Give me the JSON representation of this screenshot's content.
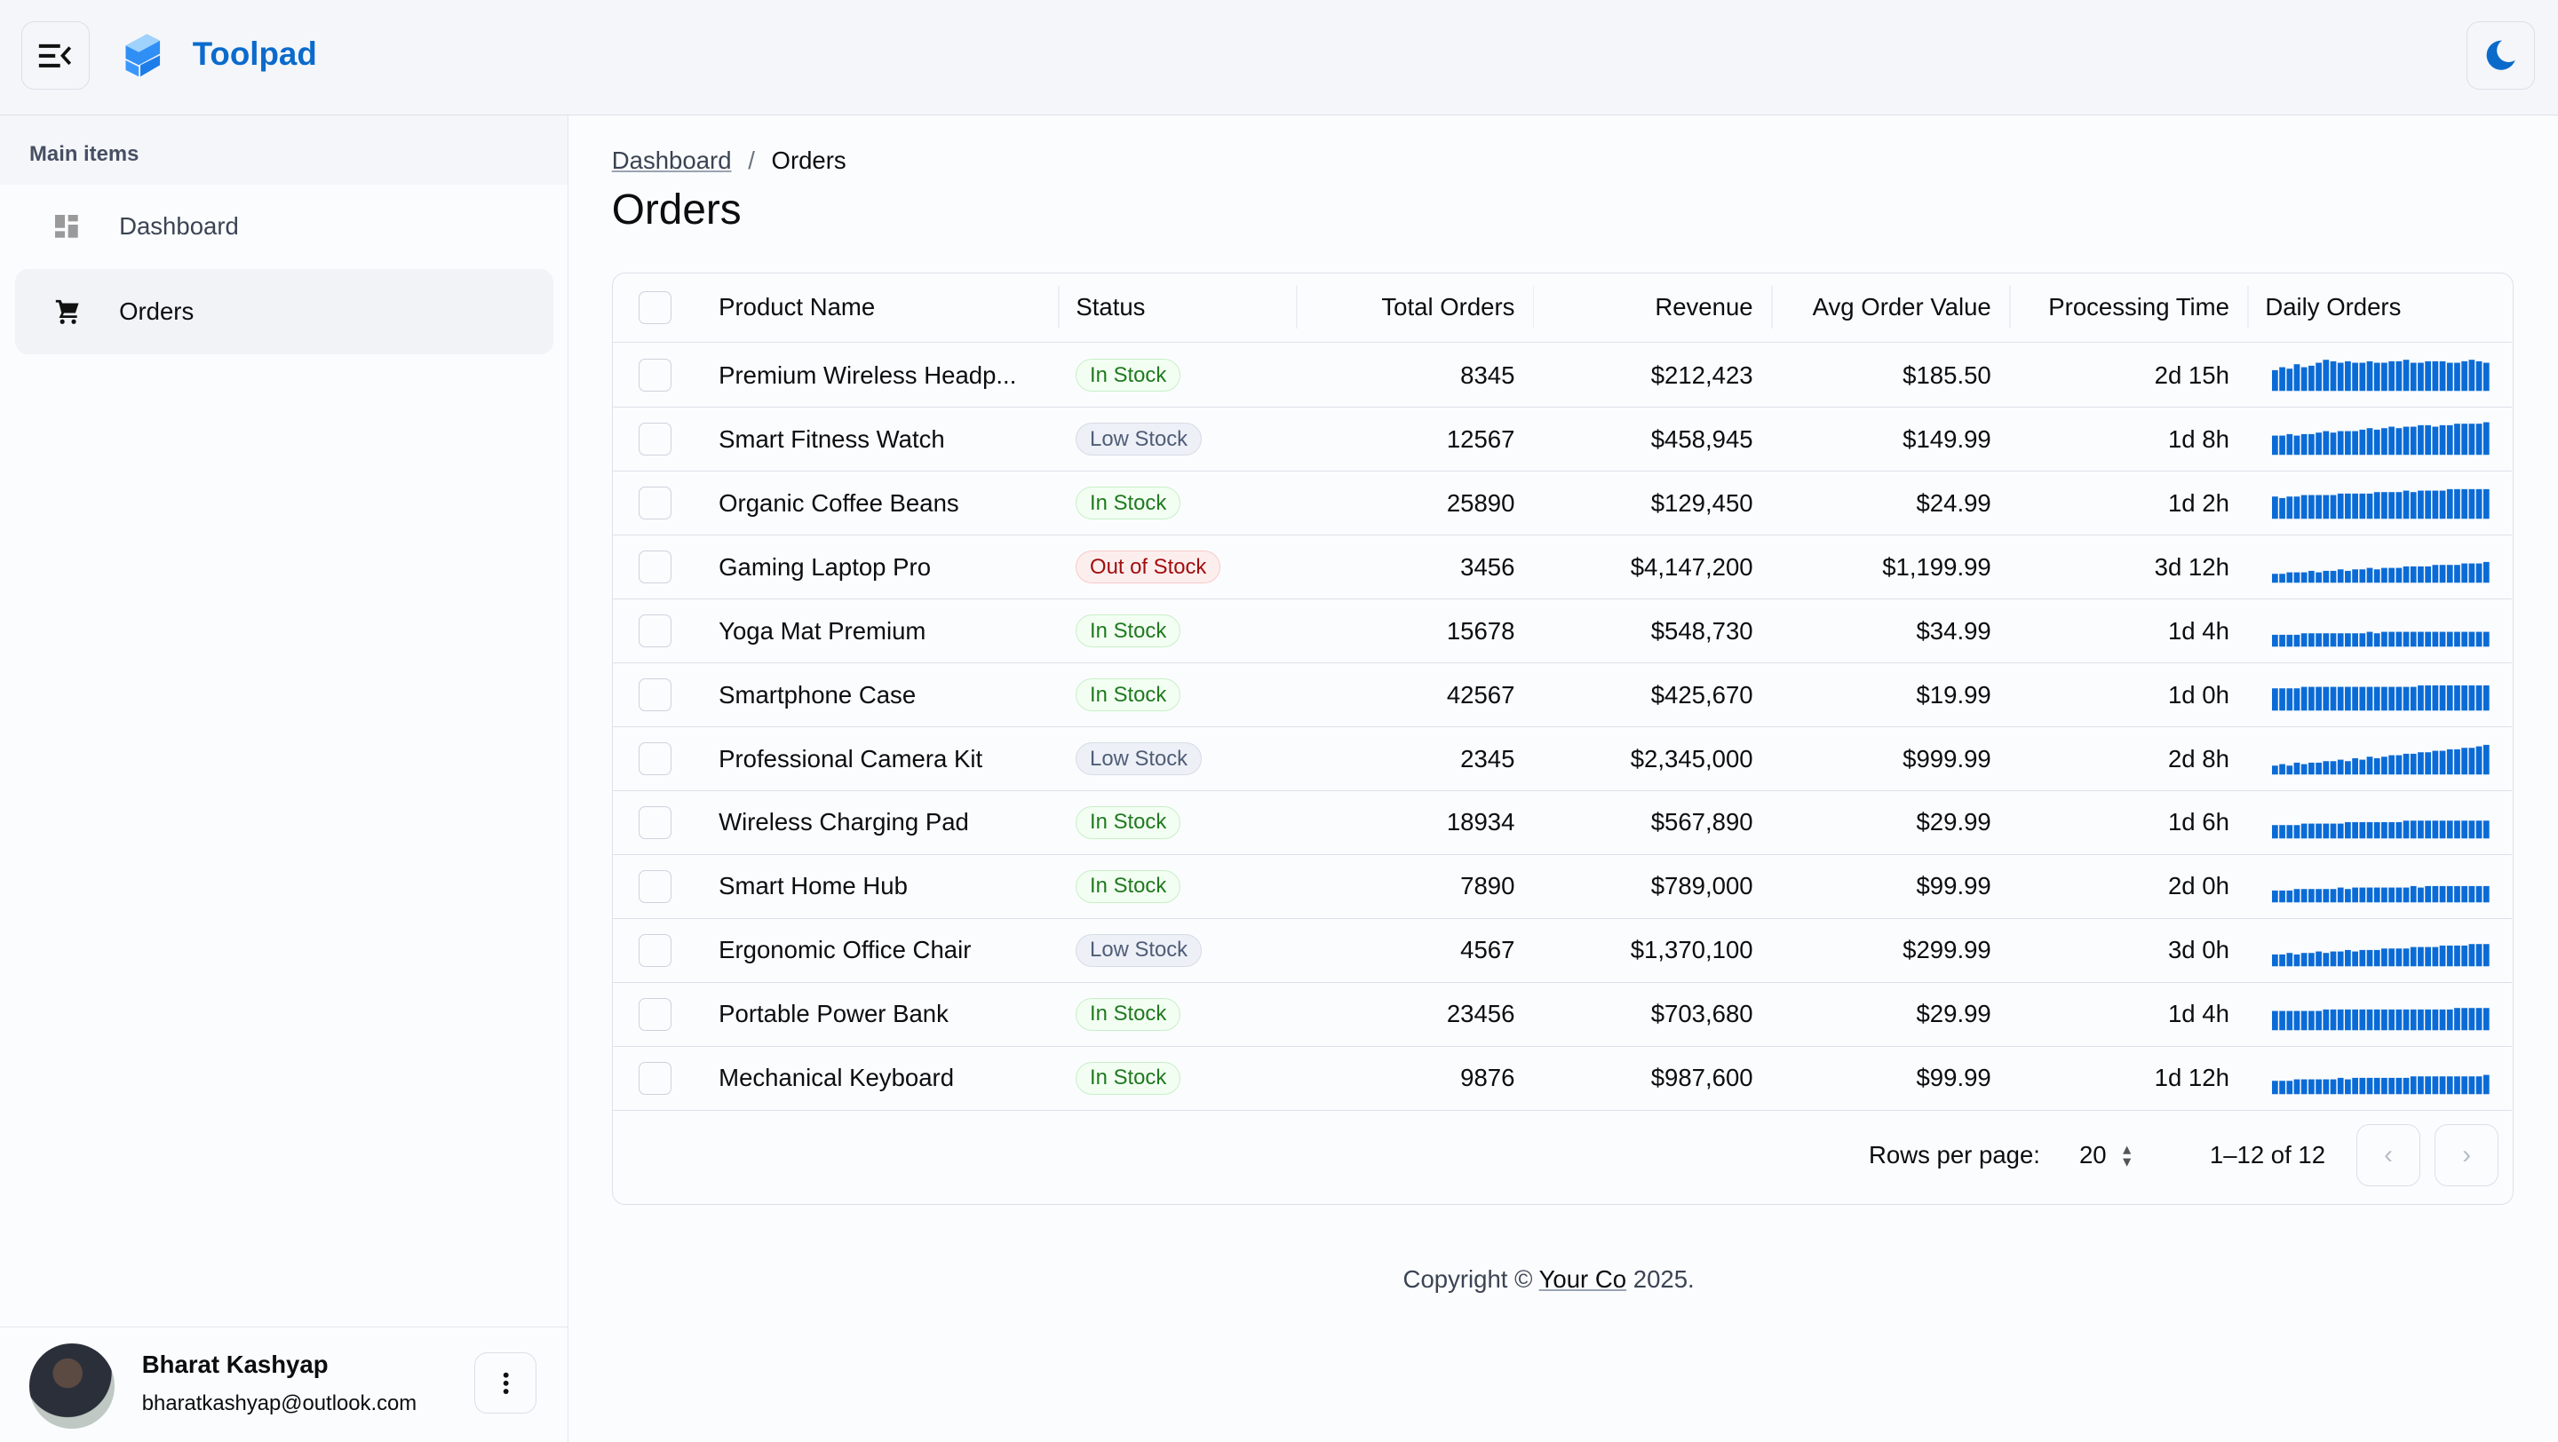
{
  "app": {
    "title": "Toolpad",
    "brand_color": "#0b6bcb"
  },
  "header": {
    "menu_icon": "menu-collapse-icon",
    "theme_icon": "moon-icon"
  },
  "sidebar": {
    "section": "Main items",
    "items": [
      {
        "label": "Dashboard",
        "icon": "dashboard-icon"
      },
      {
        "label": "Orders",
        "icon": "cart-icon",
        "selected": true
      }
    ],
    "user": {
      "name": "Bharat Kashyap",
      "email": "bharatkashyap@outlook.com"
    }
  },
  "breadcrumb": {
    "parent": "Dashboard",
    "separator": "/",
    "current": "Orders"
  },
  "page_title": "Orders",
  "table": {
    "columns": [
      "Product Name",
      "Status",
      "Total Orders",
      "Revenue",
      "Avg Order Value",
      "Processing Time",
      "Daily Orders"
    ],
    "status_colors": {
      "In Stock": {
        "fg": "#1f7a1f",
        "bg": "#f3fef3",
        "border": "#c6f0c6"
      },
      "Low Stock": {
        "fg": "#4f5d78",
        "bg": "#edf0f6",
        "border": "#d6dbe6"
      },
      "Out of Stock": {
        "fg": "#a10e0e",
        "bg": "#fdeeee",
        "border": "#f8c9c9"
      }
    },
    "rows": [
      {
        "name": "Premium Wireless Headp...",
        "status": "In Stock",
        "orders": "8345",
        "revenue": "$212,423",
        "avg": "$185.50",
        "time": "2d 15h",
        "daily": [
          14,
          16,
          15,
          18,
          16,
          17,
          19,
          21,
          20,
          19,
          20,
          19,
          19,
          20,
          19,
          19,
          20,
          20,
          21,
          19,
          19,
          20,
          20,
          20,
          19,
          19,
          20,
          21,
          20,
          19
        ]
      },
      {
        "name": "Smart Fitness Watch",
        "status": "Low Stock",
        "orders": "12567",
        "revenue": "$458,945",
        "avg": "$149.99",
        "time": "1d 8h",
        "daily": [
          13,
          13,
          14,
          13,
          14,
          14,
          15,
          16,
          15,
          16,
          16,
          16,
          17,
          18,
          17,
          18,
          19,
          18,
          19,
          19,
          20,
          20,
          19,
          20,
          20,
          21,
          21,
          21,
          21,
          22
        ]
      },
      {
        "name": "Organic Coffee Beans",
        "status": "In Stock",
        "orders": "25890",
        "revenue": "$129,450",
        "avg": "$24.99",
        "time": "1d 2h",
        "daily": [
          15,
          14,
          15,
          15,
          16,
          16,
          16,
          16,
          16,
          17,
          17,
          17,
          17,
          17,
          18,
          18,
          18,
          18,
          19,
          18,
          19,
          19,
          19,
          19,
          20,
          20,
          20,
          20,
          20,
          20
        ]
      },
      {
        "name": "Gaming Laptop Pro",
        "status": "Out of Stock",
        "orders": "3456",
        "revenue": "$4,147,200",
        "avg": "$1,199.99",
        "time": "3d 12h",
        "daily": [
          6,
          6,
          7,
          7,
          7,
          8,
          7,
          8,
          8,
          9,
          8,
          9,
          9,
          10,
          9,
          10,
          10,
          10,
          11,
          11,
          11,
          11,
          12,
          12,
          12,
          12,
          13,
          13,
          13,
          14
        ]
      },
      {
        "name": "Yoga Mat Premium",
        "status": "In Stock",
        "orders": "15678",
        "revenue": "$548,730",
        "avg": "$34.99",
        "time": "1d 4h",
        "daily": [
          8,
          8,
          8,
          8,
          9,
          9,
          9,
          9,
          9,
          9,
          9,
          9,
          9,
          10,
          9,
          10,
          10,
          10,
          10,
          10,
          10,
          10,
          10,
          10,
          10,
          10,
          10,
          10,
          10,
          10
        ]
      },
      {
        "name": "Smartphone Case",
        "status": "In Stock",
        "orders": "42567",
        "revenue": "$425,670",
        "avg": "$19.99",
        "time": "1d 0h",
        "daily": [
          15,
          15,
          15,
          15,
          16,
          16,
          16,
          16,
          16,
          16,
          16,
          16,
          16,
          16,
          16,
          16,
          16,
          16,
          16,
          16,
          17,
          17,
          17,
          17,
          17,
          17,
          17,
          17,
          17,
          17
        ]
      },
      {
        "name": "Professional Camera Kit",
        "status": "Low Stock",
        "orders": "2345",
        "revenue": "$2,345,000",
        "avg": "$999.99",
        "time": "2d 8h",
        "daily": [
          6,
          7,
          6,
          8,
          7,
          8,
          8,
          9,
          9,
          10,
          9,
          11,
          10,
          12,
          11,
          12,
          13,
          13,
          14,
          14,
          15,
          15,
          16,
          16,
          17,
          17,
          18,
          18,
          19,
          20
        ]
      },
      {
        "name": "Wireless Charging Pad",
        "status": "In Stock",
        "orders": "18934",
        "revenue": "$567,890",
        "avg": "$29.99",
        "time": "1d 6h",
        "daily": [
          9,
          9,
          9,
          9,
          10,
          10,
          10,
          10,
          10,
          10,
          11,
          11,
          11,
          11,
          11,
          11,
          11,
          11,
          12,
          12,
          12,
          12,
          12,
          12,
          12,
          12,
          12,
          12,
          12,
          12
        ]
      },
      {
        "name": "Smart Home Hub",
        "status": "In Stock",
        "orders": "7890",
        "revenue": "$789,000",
        "avg": "$99.99",
        "time": "2d 0h",
        "daily": [
          8,
          8,
          8,
          9,
          9,
          9,
          9,
          9,
          9,
          10,
          9,
          10,
          10,
          10,
          10,
          10,
          10,
          10,
          10,
          11,
          10,
          11,
          11,
          11,
          11,
          11,
          11,
          11,
          11,
          11
        ]
      },
      {
        "name": "Ergonomic Office Chair",
        "status": "Low Stock",
        "orders": "4567",
        "revenue": "$1,370,100",
        "avg": "$299.99",
        "time": "3d 0h",
        "daily": [
          8,
          8,
          9,
          8,
          9,
          9,
          10,
          9,
          10,
          10,
          11,
          10,
          11,
          11,
          11,
          12,
          12,
          12,
          12,
          13,
          13,
          13,
          13,
          14,
          14,
          14,
          14,
          15,
          15,
          15
        ]
      },
      {
        "name": "Portable Power Bank",
        "status": "In Stock",
        "orders": "23456",
        "revenue": "$703,680",
        "avg": "$29.99",
        "time": "1d 4h",
        "daily": [
          13,
          13,
          13,
          13,
          13,
          13,
          13,
          14,
          14,
          14,
          14,
          14,
          14,
          14,
          14,
          14,
          14,
          14,
          14,
          14,
          14,
          14,
          14,
          14,
          14,
          15,
          15,
          15,
          15,
          15
        ]
      },
      {
        "name": "Mechanical Keyboard",
        "status": "In Stock",
        "orders": "9876",
        "revenue": "$987,600",
        "avg": "$99.99",
        "time": "1d 12h",
        "daily": [
          9,
          9,
          9,
          10,
          10,
          10,
          10,
          10,
          10,
          11,
          10,
          11,
          11,
          11,
          11,
          11,
          11,
          11,
          11,
          12,
          12,
          12,
          12,
          12,
          12,
          12,
          12,
          12,
          12,
          13
        ]
      }
    ],
    "spark_color": "#0b6bd6",
    "pagination": {
      "rows_per_page_label": "Rows per page:",
      "rows_per_page": "20",
      "range": "1–12 of 12"
    }
  },
  "footer": {
    "prefix": "Copyright ©",
    "link": "Your Co",
    "suffix": "2025."
  }
}
